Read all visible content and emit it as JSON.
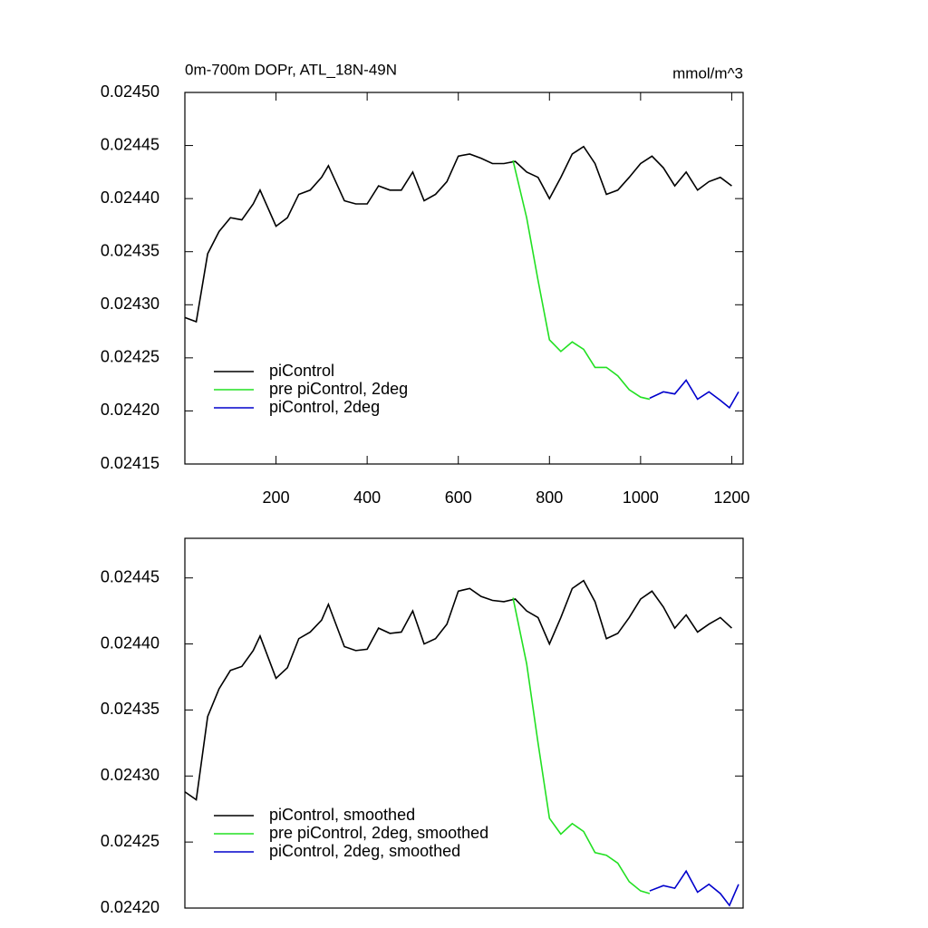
{
  "chart_data": [
    {
      "type": "line",
      "title": "0m-700m DOPr, ATL_18N-49N",
      "units": "mmol/m^3",
      "xlim": [
        0,
        1225
      ],
      "xticks": [
        200,
        400,
        600,
        800,
        1000,
        1200
      ],
      "ylim": [
        0.02415,
        0.0245
      ],
      "yticks": [
        0.02415,
        {
          "value": 0.0242,
          "label": "0.02420"
        },
        0.02425,
        {
          "value": 0.0243,
          "label": "0.02430"
        },
        0.02435,
        {
          "value": 0.0244,
          "label": "0.02440"
        },
        0.02445,
        {
          "value": 0.0245,
          "label": "0.02450"
        }
      ],
      "legend": "lower left",
      "series": [
        {
          "name": "piControl",
          "color": "#000000",
          "x": [
            0,
            25,
            50,
            75,
            100,
            125,
            150,
            165,
            200,
            225,
            250,
            275,
            300,
            315,
            350,
            375,
            400,
            425,
            450,
            475,
            500,
            525,
            550,
            575,
            600,
            625,
            650,
            675,
            700,
            725,
            750,
            775,
            800,
            825,
            850,
            875,
            900,
            925,
            950,
            975,
            1000,
            1025,
            1050,
            1075,
            1100,
            1125,
            1150,
            1175,
            1200
          ],
          "values": [
            0.024288,
            0.024284,
            0.024348,
            0.024369,
            0.024382,
            0.02438,
            0.024395,
            0.024408,
            0.024374,
            0.024382,
            0.024404,
            0.024408,
            0.02442,
            0.024431,
            0.024398,
            0.024395,
            0.024395,
            0.024412,
            0.024408,
            0.024408,
            0.024425,
            0.024398,
            0.024404,
            0.024416,
            0.02444,
            0.024442,
            0.024438,
            0.024433,
            0.024433,
            0.024435,
            0.024425,
            0.02442,
            0.0244,
            0.02442,
            0.024442,
            0.024449,
            0.024433,
            0.024404,
            0.024408,
            0.02442,
            0.024433,
            0.02444,
            0.024429,
            0.024412,
            0.024425,
            0.024408,
            0.024416,
            0.02442,
            0.024412
          ]
        },
        {
          "name": "pre piControl, 2deg",
          "color": "#22e022",
          "x": [
            720,
            750,
            775,
            800,
            825,
            850,
            875,
            900,
            925,
            950,
            975,
            1000,
            1020
          ],
          "values": [
            0.024436,
            0.024382,
            0.024323,
            0.024267,
            0.024256,
            0.024265,
            0.024258,
            0.024241,
            0.024241,
            0.024233,
            0.02422,
            0.024213,
            0.024211
          ]
        },
        {
          "name": "piControl, 2deg",
          "color": "#0000cc",
          "x": [
            1020,
            1050,
            1075,
            1100,
            1125,
            1150,
            1175,
            1195,
            1215
          ],
          "values": [
            0.024212,
            0.024218,
            0.024216,
            0.024229,
            0.024211,
            0.024218,
            0.02421,
            0.024203,
            0.024218
          ]
        }
      ]
    },
    {
      "type": "line",
      "xlim": [
        0,
        1225
      ],
      "ylim": [
        0.0242,
        0.02448
      ],
      "yticks": [
        {
          "value": 0.0242,
          "label": "0.02420"
        },
        0.02425,
        {
          "value": 0.0243,
          "label": "0.02430"
        },
        0.02435,
        {
          "value": 0.0244,
          "label": "0.02440"
        },
        0.02445
      ],
      "legend": "lower left",
      "series": [
        {
          "name": "piControl, smoothed",
          "color": "#000000",
          "x": [
            0,
            25,
            50,
            75,
            100,
            125,
            150,
            165,
            200,
            225,
            250,
            275,
            300,
            315,
            350,
            375,
            400,
            425,
            450,
            475,
            500,
            525,
            550,
            575,
            600,
            625,
            650,
            675,
            700,
            725,
            750,
            775,
            800,
            825,
            850,
            875,
            900,
            925,
            950,
            975,
            1000,
            1025,
            1050,
            1075,
            1100,
            1125,
            1150,
            1175,
            1200
          ],
          "values": [
            0.024288,
            0.024282,
            0.024345,
            0.024366,
            0.02438,
            0.024383,
            0.024395,
            0.024406,
            0.024374,
            0.024382,
            0.024404,
            0.024409,
            0.024418,
            0.02443,
            0.024398,
            0.024395,
            0.024396,
            0.024412,
            0.024408,
            0.024409,
            0.024425,
            0.0244,
            0.024404,
            0.024415,
            0.02444,
            0.024442,
            0.024436,
            0.024433,
            0.024432,
            0.024434,
            0.024425,
            0.02442,
            0.0244,
            0.02442,
            0.024442,
            0.024448,
            0.024432,
            0.024404,
            0.024408,
            0.02442,
            0.024434,
            0.02444,
            0.024428,
            0.024412,
            0.024422,
            0.024409,
            0.024415,
            0.02442,
            0.024412
          ]
        },
        {
          "name": "pre piControl, 2deg, smoothed",
          "color": "#22e022",
          "x": [
            720,
            750,
            775,
            800,
            825,
            850,
            875,
            900,
            925,
            950,
            975,
            1000,
            1020
          ],
          "values": [
            0.024435,
            0.024385,
            0.024325,
            0.024268,
            0.024256,
            0.024264,
            0.024258,
            0.024242,
            0.02424,
            0.024234,
            0.02422,
            0.024213,
            0.024211
          ]
        },
        {
          "name": "piControl, 2deg, smoothed",
          "color": "#0000cc",
          "x": [
            1020,
            1050,
            1075,
            1100,
            1125,
            1150,
            1175,
            1195,
            1215
          ],
          "values": [
            0.024213,
            0.024217,
            0.024215,
            0.024228,
            0.024212,
            0.024218,
            0.024211,
            0.024202,
            0.024218
          ]
        }
      ]
    }
  ]
}
